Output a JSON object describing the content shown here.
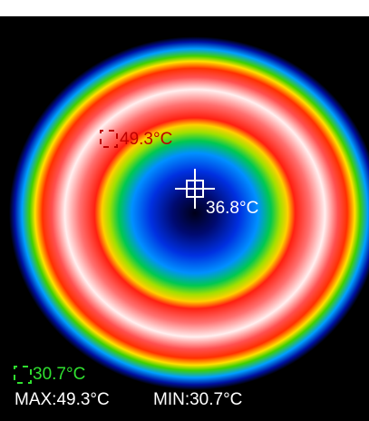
{
  "markers": {
    "max": {
      "label": "49.3°C"
    },
    "center": {
      "label": "36.8°C"
    },
    "min": {
      "label": "30.7°C"
    }
  },
  "footer": {
    "max": "MAX:49.3°C",
    "min": "MIN:30.7°C"
  }
}
